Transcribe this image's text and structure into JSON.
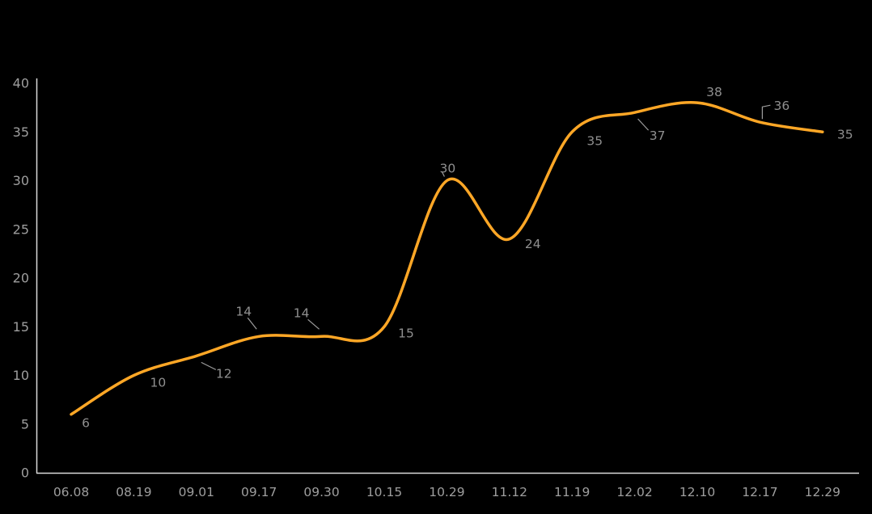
{
  "chart_data": {
    "type": "line",
    "title": "",
    "xlabel": "",
    "ylabel": "",
    "categories": [
      "06.08",
      "08.19",
      "09.01",
      "09.17",
      "09.30",
      "10.15",
      "10.29",
      "11.12",
      "11.19",
      "12.02",
      "12.10",
      "12.17",
      "12.29"
    ],
    "values": [
      6,
      10,
      12,
      14,
      14,
      15,
      30,
      24,
      35,
      37,
      38,
      36,
      35
    ],
    "data_labels": [
      "6",
      "10",
      "12",
      "14",
      "14",
      "15",
      "30",
      "24",
      "35",
      "37",
      "38",
      "36",
      "35"
    ],
    "ylim": [
      0,
      40
    ],
    "y_ticks": [
      0,
      5,
      10,
      15,
      20,
      25,
      30,
      35,
      40
    ],
    "smooth": true,
    "grid": false,
    "legend": "none",
    "colors": {
      "line": "#FFA726",
      "axis": "#DADADA",
      "tick_label": "#9E9E9E",
      "data_label": "#8F8F8F",
      "leader_line": "#9E9E9E",
      "background": "#000000"
    }
  }
}
